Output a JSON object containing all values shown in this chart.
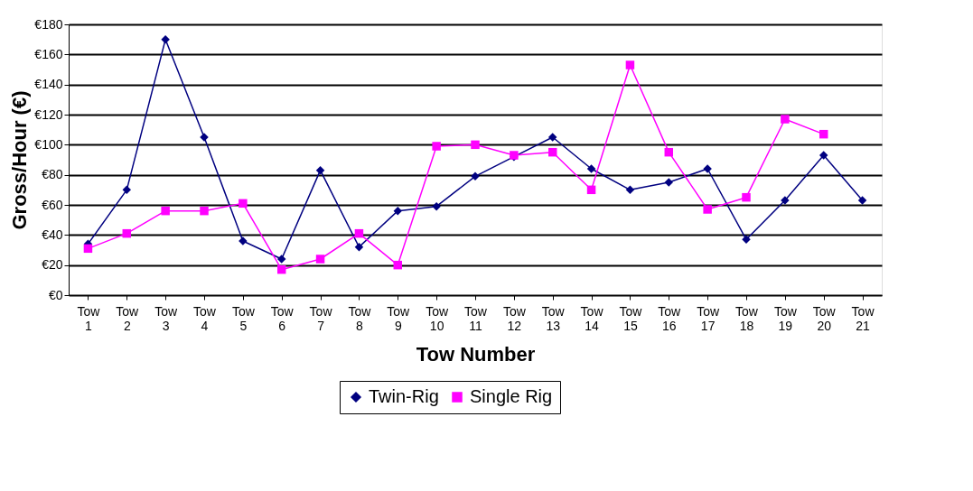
{
  "chart_data": {
    "type": "line",
    "xlabel": "Tow Number",
    "ylabel": "Gross/Hour (€)",
    "categories": [
      "Tow 1",
      "Tow 2",
      "Tow 3",
      "Tow 4",
      "Tow 5",
      "Tow 6",
      "Tow 7",
      "Tow 8",
      "Tow 9",
      "Tow 10",
      "Tow 11",
      "Tow 12",
      "Tow 13",
      "Tow 14",
      "Tow 15",
      "Tow 16",
      "Tow 17",
      "Tow 18",
      "Tow 19",
      "Tow 20",
      "Tow 21"
    ],
    "series": [
      {
        "name": "Twin-Rig",
        "color": "#000080",
        "marker": "diamond",
        "values": [
          34,
          70,
          170,
          105,
          36,
          24,
          83,
          32,
          56,
          59,
          79,
          92,
          105,
          84,
          70,
          75,
          84,
          37,
          63,
          93,
          63
        ]
      },
      {
        "name": "Single Rig",
        "color": "#ff00ff",
        "marker": "square",
        "values": [
          31,
          41,
          56,
          56,
          61,
          17,
          24,
          41,
          20,
          99,
          100,
          93,
          95,
          70,
          153,
          95,
          57,
          65,
          117,
          107,
          null
        ]
      }
    ],
    "ylim": [
      0,
      180
    ],
    "yticks": [
      {
        "value": 0,
        "label": "€0"
      },
      {
        "value": 20,
        "label": "€20"
      },
      {
        "value": 40,
        "label": "€40"
      },
      {
        "value": 60,
        "label": "€60"
      },
      {
        "value": 80,
        "label": "€80"
      },
      {
        "value": 100,
        "label": "€100"
      },
      {
        "value": 120,
        "label": "€120"
      },
      {
        "value": 140,
        "label": "€140"
      },
      {
        "value": 160,
        "label": "€160"
      },
      {
        "value": 180,
        "label": "€180"
      }
    ],
    "grid": "y",
    "legend": "bottom",
    "line_style": "solid"
  }
}
